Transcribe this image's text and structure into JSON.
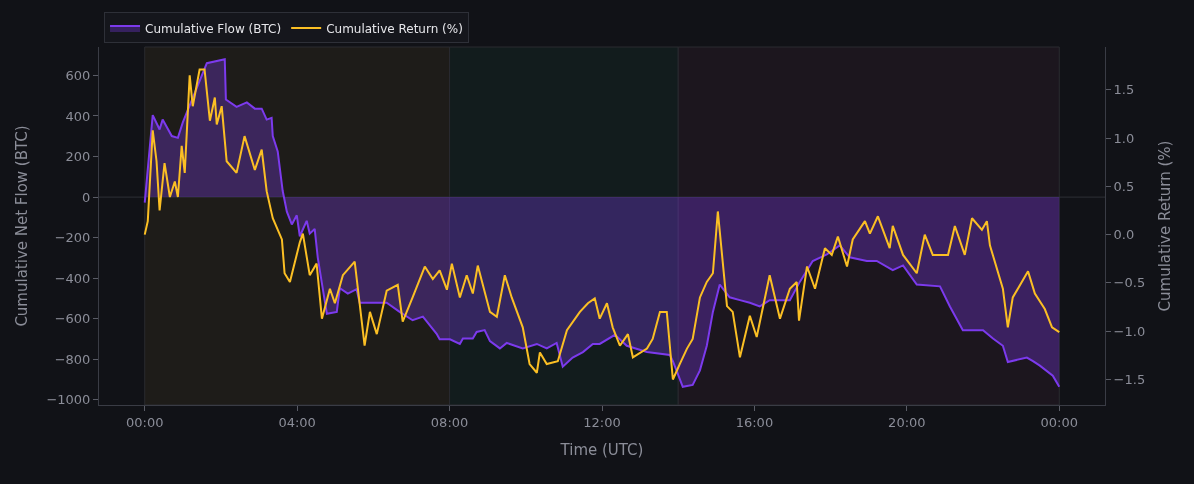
{
  "chart_data": {
    "type": "line",
    "xlabel": "Time (UTC)",
    "ylabel": "Cumulative Net Flow (BTC)",
    "y2label": "Cumulative Return (%)",
    "xlim": [
      -1.2,
      25.2
    ],
    "ylim": [
      -1025,
      740
    ],
    "y2lim": [
      -1.764,
      1.943
    ],
    "xticks": [
      {
        "value": 0,
        "label": "00:00"
      },
      {
        "value": 4,
        "label": "04:00"
      },
      {
        "value": 8,
        "label": "08:00"
      },
      {
        "value": 12,
        "label": "12:00"
      },
      {
        "value": 16,
        "label": "16:00"
      },
      {
        "value": 20,
        "label": "20:00"
      },
      {
        "value": 24,
        "label": "00:00"
      }
    ],
    "yticks": [
      {
        "value": -1000,
        "label": "−1000"
      },
      {
        "value": -800,
        "label": "−800"
      },
      {
        "value": -600,
        "label": "−600"
      },
      {
        "value": -400,
        "label": "−400"
      },
      {
        "value": -200,
        "label": "−200"
      },
      0,
      200,
      400,
      600
    ],
    "y2ticks": [
      {
        "value": -1.5,
        "label": "−1.5"
      },
      {
        "value": -1,
        "label": "−1.0"
      },
      {
        "value": -0.5,
        "label": "−0.5"
      },
      {
        "value": 0,
        "label": "0.0"
      },
      {
        "value": 0.5,
        "label": "0.5"
      },
      {
        "value": 1,
        "label": "1.0"
      },
      {
        "value": 1.5,
        "label": "1.5"
      }
    ],
    "grid": false,
    "legend": "top left",
    "bands": [
      {
        "axis": "x",
        "from": 0,
        "to": 8,
        "color": "#1e1c19"
      },
      {
        "axis": "x",
        "from": 8,
        "to": 14,
        "color": "#121c1d"
      },
      {
        "axis": "x",
        "from": 14,
        "to": 24,
        "color": "#1c161e"
      }
    ],
    "ref_lines": [
      {
        "axis": "y",
        "value": 0,
        "color": "#2e2f36"
      }
    ],
    "series": [
      {
        "name": "Cumulative Flow (BTC)",
        "type": "area",
        "color": "#7c3aed",
        "x": [
          0,
          0.21,
          0.39,
          0.47,
          0.71,
          0.87,
          1.0,
          1.63,
          2.1,
          2.13,
          2.41,
          2.68,
          2.89,
          3.07,
          3.2,
          3.33,
          3.36,
          3.49,
          3.62,
          3.73,
          3.86,
          3.99,
          4.07,
          4.25,
          4.33,
          4.46,
          4.54,
          4.67,
          4.78,
          5.04,
          5.12,
          5.33,
          5.56,
          5.64,
          6.35,
          6.69,
          7.03,
          7.3,
          7.66,
          7.74,
          8.01,
          8.27,
          8.35,
          8.61,
          8.71,
          8.92,
          9.06,
          9.32,
          9.5,
          9.92,
          10.29,
          10.55,
          10.81,
          10.97,
          11.23,
          11.5,
          11.76,
          11.94,
          12.34,
          12.65,
          13.18,
          13.78,
          13.86,
          14.12,
          14.38,
          14.57,
          14.75,
          14.91,
          15.09,
          15.35,
          15.62,
          15.88,
          16.14,
          16.4,
          16.93,
          17.19,
          17.53,
          17.9,
          18.24,
          18.5,
          18.95,
          19.21,
          19.63,
          19.9,
          20.26,
          20.87,
          21.13,
          21.47,
          22.0,
          22.26,
          22.52,
          22.65,
          23.15,
          23.31,
          23.49,
          23.83,
          24
        ],
        "values": [
          -27,
          404,
          333,
          382,
          301,
          292,
          368,
          660,
          680,
          481,
          445,
          467,
          436,
          436,
          382,
          391,
          301,
          225,
          31,
          -72,
          -135,
          -90,
          -193,
          -117,
          -180,
          -157,
          -297,
          -449,
          -575,
          -566,
          -449,
          -476,
          -454,
          -521,
          -521,
          -566,
          -607,
          -589,
          -674,
          -701,
          -701,
          -724,
          -697,
          -697,
          -665,
          -656,
          -710,
          -746,
          -719,
          -746,
          -724,
          -746,
          -719,
          -836,
          -791,
          -764,
          -724,
          -724,
          -679,
          -733,
          -764,
          -778,
          -809,
          -935,
          -926,
          -854,
          -733,
          -566,
          -431,
          -494,
          -508,
          -521,
          -539,
          -508,
          -508,
          -418,
          -315,
          -283,
          -238,
          -297,
          -315,
          -315,
          -360,
          -337,
          -431,
          -440,
          -539,
          -656,
          -656,
          -697,
          -733,
          -813,
          -791,
          -809,
          -831,
          -881,
          -935
        ]
      },
      {
        "name": "Cumulative Return (%)",
        "type": "line",
        "axis": "y2",
        "color": "#fbbf24",
        "x": [
          0,
          0.08,
          0.21,
          0.31,
          0.39,
          0.52,
          0.66,
          0.79,
          0.87,
          0.97,
          1.05,
          1.18,
          1.26,
          1.44,
          1.57,
          1.71,
          1.84,
          1.89,
          2.02,
          2.15,
          2.41,
          2.62,
          2.89,
          3.07,
          3.2,
          3.36,
          3.6,
          3.67,
          3.81,
          4.07,
          4.15,
          4.33,
          4.51,
          4.65,
          4.86,
          4.99,
          5.2,
          5.51,
          5.77,
          5.91,
          6.09,
          6.35,
          6.64,
          6.77,
          7.03,
          7.35,
          7.56,
          7.74,
          7.93,
          8.06,
          8.27,
          8.45,
          8.61,
          8.74,
          9.06,
          9.24,
          9.45,
          9.63,
          9.92,
          10.1,
          10.29,
          10.37,
          10.55,
          10.84,
          11.08,
          11.42,
          11.63,
          11.81,
          11.94,
          12.13,
          12.28,
          12.47,
          12.68,
          12.81,
          13.18,
          13.33,
          13.52,
          13.7,
          13.86,
          14.04,
          14.23,
          14.38,
          14.57,
          14.75,
          14.91,
          15.04,
          15.28,
          15.43,
          15.62,
          15.88,
          16.06,
          16.4,
          16.67,
          16.93,
          17.11,
          17.17,
          17.38,
          17.59,
          17.85,
          18.03,
          18.19,
          18.43,
          18.58,
          18.9,
          19.03,
          19.24,
          19.55,
          19.63,
          19.9,
          20.26,
          20.47,
          20.68,
          21.08,
          21.26,
          21.52,
          21.71,
          21.97,
          22.1,
          22.18,
          22.52,
          22.65,
          22.78,
          23.18,
          23.36,
          23.62,
          23.81,
          24
        ],
        "values": [
          0.0,
          0.14,
          1.08,
          0.76,
          0.25,
          0.74,
          0.39,
          0.55,
          0.39,
          0.92,
          0.64,
          1.65,
          1.33,
          1.71,
          1.71,
          1.18,
          1.42,
          1.14,
          1.33,
          0.76,
          0.64,
          1.02,
          0.67,
          0.88,
          0.45,
          0.17,
          -0.05,
          -0.4,
          -0.49,
          -0.08,
          0.01,
          -0.42,
          -0.3,
          -0.87,
          -0.56,
          -0.71,
          -0.42,
          -0.28,
          -1.15,
          -0.8,
          -1.03,
          -0.58,
          -0.52,
          -0.9,
          -0.65,
          -0.33,
          -0.46,
          -0.37,
          -0.57,
          -0.3,
          -0.65,
          -0.42,
          -0.61,
          -0.32,
          -0.8,
          -0.85,
          -0.42,
          -0.65,
          -0.96,
          -1.34,
          -1.43,
          -1.22,
          -1.34,
          -1.31,
          -0.99,
          -0.8,
          -0.71,
          -0.66,
          -0.87,
          -0.71,
          -0.96,
          -1.15,
          -1.03,
          -1.27,
          -1.18,
          -1.08,
          -0.8,
          -0.8,
          -1.5,
          -1.34,
          -1.18,
          -1.08,
          -0.65,
          -0.49,
          -0.4,
          0.24,
          -0.74,
          -0.8,
          -1.27,
          -0.84,
          -1.06,
          -0.42,
          -0.87,
          -0.56,
          -0.49,
          -0.89,
          -0.33,
          -0.56,
          -0.14,
          -0.21,
          -0.02,
          -0.33,
          -0.05,
          0.14,
          0.01,
          0.19,
          -0.14,
          0.09,
          -0.21,
          -0.4,
          0.0,
          -0.21,
          -0.21,
          0.09,
          -0.21,
          0.17,
          0.05,
          0.14,
          -0.11,
          -0.56,
          -0.96,
          -0.65,
          -0.38,
          -0.61,
          -0.77,
          -0.96,
          -1.01
        ]
      }
    ]
  }
}
